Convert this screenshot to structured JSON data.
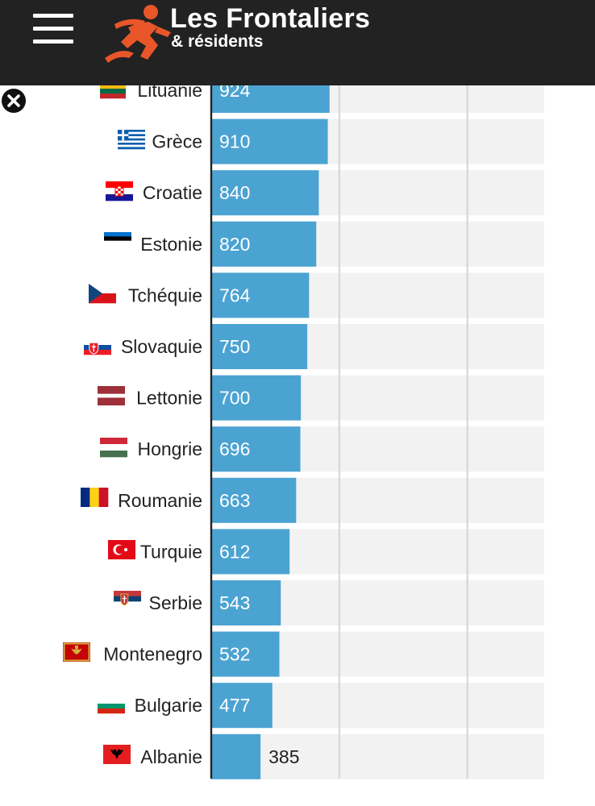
{
  "header": {
    "brand_title": "Les Frontaliers",
    "brand_subtitle": "& résidents",
    "background": "#222222",
    "logo_color": "#e8562a"
  },
  "chart_data": {
    "type": "bar",
    "orientation": "horizontal",
    "categories": [
      "Lituanie",
      "Grèce",
      "Croatie",
      "Estonie",
      "Tchéquie",
      "Slovaquie",
      "Lettonie",
      "Hongrie",
      "Roumanie",
      "Turquie",
      "Serbie",
      "Montenegro",
      "Bulgarie",
      "Albanie"
    ],
    "values": [
      924,
      910,
      840,
      820,
      764,
      750,
      700,
      696,
      663,
      612,
      543,
      532,
      477,
      385
    ],
    "data_labels": [
      "924",
      "910",
      "840",
      "820",
      "764",
      "750",
      "700",
      "696",
      "663",
      "612",
      "543",
      "532",
      "477",
      "385"
    ],
    "flags": [
      "lithuania-flag",
      "greece-flag",
      "croatia-flag",
      "estonia-flag",
      "czechia-flag",
      "slovakia-flag",
      "latvia-flag",
      "hungary-flag",
      "romania-flag",
      "turkey-flag",
      "serbia-flag",
      "montenegro-flag",
      "bulgaria-flag",
      "albania-flag"
    ],
    "xlim": [
      0,
      2600
    ],
    "grid": true,
    "bar_color": "#4ba3d2",
    "track_color": "#f2f2f2"
  }
}
